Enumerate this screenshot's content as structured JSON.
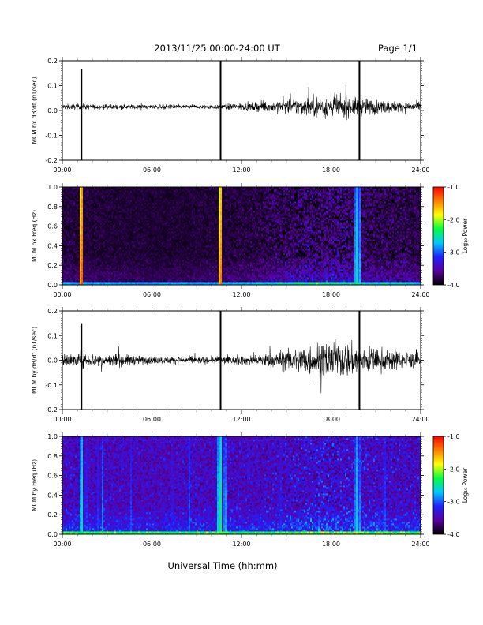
{
  "header": {
    "title": "2013/11/25  00:00-24:00 UT",
    "page_label": "Page 1/1"
  },
  "footer": {
    "xlabel": "Universal Time (hh:mm)"
  },
  "colorbar": {
    "label": "Log₁₀ Power",
    "ticks": [
      "-1.0",
      "-2.0",
      "-3.0",
      "-4.0"
    ],
    "tick_values": [
      -1.0,
      -2.0,
      -3.0,
      -4.0
    ],
    "range": [
      -4.0,
      -1.0
    ],
    "colors": [
      "#000000",
      "#5a00a0",
      "#2020ff",
      "#00c8ff",
      "#00ff40",
      "#ffff00",
      "#ff8000",
      "#ff0000"
    ]
  },
  "chart_data": [
    {
      "type": "line",
      "ylabel": "MCM bx dB/dt (nT/sec)",
      "xlim": [
        0,
        24
      ],
      "ylim": [
        -0.2,
        0.2
      ],
      "x_ticks": [
        "00:00",
        "06:00",
        "12:00",
        "18:00",
        "24:00"
      ],
      "y_ticks": [
        "0.2",
        "0.1",
        "0.0",
        "-0.1",
        "-0.2"
      ],
      "y_tick_values": [
        0.2,
        0.1,
        0.0,
        -0.1,
        -0.2
      ],
      "baseline": 0.015,
      "noise_profile": [
        [
          0,
          0.008
        ],
        [
          6,
          0.006
        ],
        [
          10,
          0.007
        ],
        [
          13,
          0.012
        ],
        [
          15,
          0.02
        ],
        [
          17,
          0.03
        ],
        [
          19,
          0.03
        ],
        [
          21,
          0.02
        ],
        [
          24,
          0.012
        ]
      ],
      "spikes": [
        {
          "x": 1.3,
          "ymax": 0.165,
          "ymin": -0.21
        },
        {
          "x": 10.6,
          "ymax": 0.21,
          "ymin": -0.21
        },
        {
          "x": 19.9,
          "ymax": 0.21,
          "ymin": -0.21
        }
      ]
    },
    {
      "type": "heatmap",
      "ylabel": "MCM bx Freq (Hz)",
      "xlim": [
        0,
        24
      ],
      "ylim": [
        0.0,
        1.0
      ],
      "x_ticks": [
        "00:00",
        "06:00",
        "12:00",
        "18:00",
        "24:00"
      ],
      "y_ticks": [
        "1.0",
        "0.8",
        "0.6",
        "0.4",
        "0.2",
        "0.0"
      ],
      "y_tick_values": [
        1.0,
        0.8,
        0.6,
        0.4,
        0.2,
        0.0
      ],
      "zlim": [
        -4.0,
        -1.0
      ],
      "background_level": -3.9,
      "activity_profile": [
        [
          0,
          0.35
        ],
        [
          6,
          0.25
        ],
        [
          10,
          0.3
        ],
        [
          13,
          0.45
        ],
        [
          15,
          0.65
        ],
        [
          17,
          0.8
        ],
        [
          19,
          0.8
        ],
        [
          21,
          0.6
        ],
        [
          24,
          0.5
        ]
      ],
      "bright_bands": [
        {
          "x": 1.3,
          "level": -1.2
        },
        {
          "x": 10.6,
          "level": -1.3
        },
        {
          "x": 19.7,
          "level": -2.4
        },
        {
          "x": 19.9,
          "level": -2.6
        }
      ]
    },
    {
      "type": "line",
      "ylabel": "MCM by dB/dt (nT/sec)",
      "xlim": [
        0,
        24
      ],
      "ylim": [
        -0.2,
        0.2
      ],
      "x_ticks": [
        "00:00",
        "06:00",
        "12:00",
        "18:00",
        "24:00"
      ],
      "y_ticks": [
        "0.2",
        "0.1",
        "0.0",
        "-0.1",
        "-0.2"
      ],
      "y_tick_values": [
        0.2,
        0.1,
        0.0,
        -0.1,
        -0.2
      ],
      "baseline": 0.0,
      "noise_profile": [
        [
          0,
          0.018
        ],
        [
          3,
          0.02
        ],
        [
          6,
          0.01
        ],
        [
          10,
          0.01
        ],
        [
          13,
          0.015
        ],
        [
          15,
          0.03
        ],
        [
          16.5,
          0.05
        ],
        [
          19,
          0.05
        ],
        [
          21,
          0.035
        ],
        [
          24,
          0.02
        ]
      ],
      "spikes": [
        {
          "x": 1.3,
          "ymax": 0.15,
          "ymin": -0.21
        },
        {
          "x": 10.6,
          "ymax": 0.21,
          "ymin": -0.21
        },
        {
          "x": 19.9,
          "ymax": 0.21,
          "ymin": -0.21
        }
      ]
    },
    {
      "type": "heatmap",
      "ylabel": "MCM by Freq (Hz)",
      "xlim": [
        0,
        24
      ],
      "ylim": [
        0.0,
        1.0
      ],
      "x_ticks": [
        "00:00",
        "06:00",
        "12:00",
        "18:00",
        "24:00"
      ],
      "y_ticks": [
        "1.0",
        "0.8",
        "0.6",
        "0.4",
        "0.2",
        "0.0"
      ],
      "y_tick_values": [
        1.0,
        0.8,
        0.6,
        0.4,
        0.2,
        0.0
      ],
      "zlim": [
        -4.0,
        -1.0
      ],
      "background_level": -3.55,
      "activity_profile": [
        [
          0,
          0.6
        ],
        [
          6,
          0.55
        ],
        [
          10,
          0.6
        ],
        [
          13,
          0.6
        ],
        [
          15,
          0.7
        ],
        [
          17,
          0.8
        ],
        [
          19,
          0.8
        ],
        [
          21,
          0.7
        ],
        [
          24,
          0.65
        ]
      ],
      "bright_bands": [
        {
          "x": 1.3,
          "level": -2.4
        },
        {
          "x": 1.6,
          "level": -2.9
        },
        {
          "x": 2.4,
          "level": -3.0
        },
        {
          "x": 2.7,
          "level": -2.8
        },
        {
          "x": 4.6,
          "level": -3.0
        },
        {
          "x": 7.4,
          "level": -3.0
        },
        {
          "x": 8.5,
          "level": -2.9
        },
        {
          "x": 10.4,
          "level": -2.6
        },
        {
          "x": 10.6,
          "level": -2.2
        },
        {
          "x": 10.9,
          "level": -2.6
        },
        {
          "x": 14.6,
          "level": -3.0
        },
        {
          "x": 19.7,
          "level": -2.5
        },
        {
          "x": 19.9,
          "level": -2.7
        },
        {
          "x": 21.6,
          "level": -2.9
        }
      ]
    }
  ]
}
